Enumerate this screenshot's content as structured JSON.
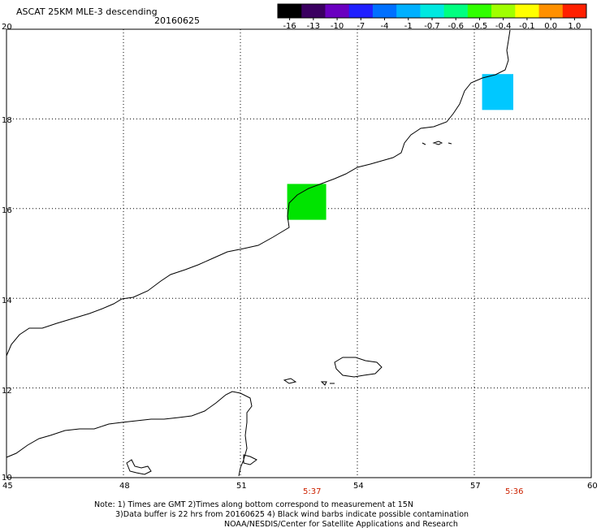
{
  "title": "ASCAT 25KM MLE-3 descending",
  "date": "20160625",
  "colorbar": {
    "labels": [
      "-16",
      "-13",
      "-10",
      "-7",
      "-4",
      "-1",
      "-0.7",
      "-0.6",
      "-0.5",
      "-0.4",
      "-0.1",
      "0.0",
      "1.0"
    ],
    "colors": [
      "#000000",
      "#3a0060",
      "#6a00c0",
      "#2020ff",
      "#0070ff",
      "#00b0ff",
      "#00e8e0",
      "#00ff80",
      "#30ff00",
      "#a0ff00",
      "#ffff00",
      "#ff9000",
      "#ff2000"
    ]
  },
  "map": {
    "lon_labels": [
      "45",
      "48",
      "51",
      "54",
      "57",
      "60"
    ],
    "lat_labels": [
      "20",
      "18",
      "16",
      "14",
      "12",
      "10"
    ],
    "times": [
      {
        "label": "5:37",
        "lon": 52.8
      },
      {
        "label": "5:36",
        "lon": 57.9
      }
    ],
    "cells": [
      {
        "lon0": 57.2,
        "lon1": 58.0,
        "lat0": 18.2,
        "lat1": 19.0,
        "color": "#00c8ff"
      },
      {
        "lon0": 52.2,
        "lon1": 53.2,
        "lat0": 15.75,
        "lat1": 16.55,
        "color": "#00e400"
      }
    ]
  },
  "notes": [
    "Note: 1) Times are GMT 2)Times along bottom correspond to measurement at 15N",
    "3)Data buffer is 22 hrs from 20160625 4) Black wind barbs indicate possible contamination",
    "NOAA/NESDIS/Center for Satellite Applications and Research"
  ]
}
